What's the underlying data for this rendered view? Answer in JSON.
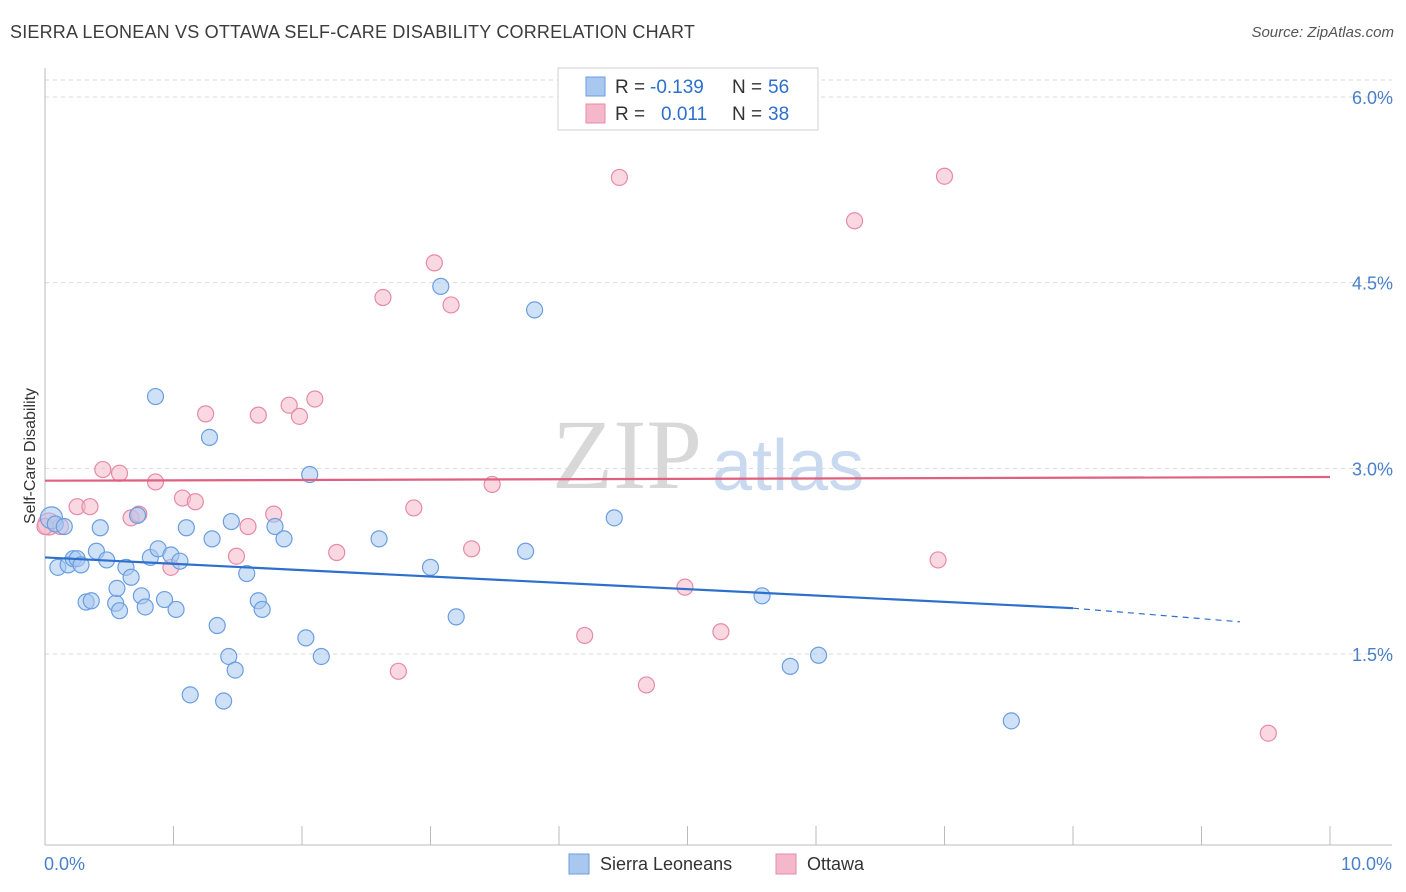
{
  "header": {
    "title": "SIERRA LEONEAN VS OTTAWA SELF-CARE DISABILITY CORRELATION CHART",
    "source": "Source: ZipAtlas.com"
  },
  "watermark": {
    "zip": "ZIP",
    "atlas": "atlas"
  },
  "legend": {
    "rows": [
      {
        "r_label": "R =",
        "r_value": "-0.139",
        "n_label": "N =",
        "n_value": "56",
        "color": "#a8c8f0"
      },
      {
        "r_label": "R =",
        "r_value": "0.011",
        "n_label": "N =",
        "n_value": "38",
        "color": "#f5b8cb"
      }
    ]
  },
  "bottom_legend": {
    "items": [
      {
        "label": "Sierra Leoneans",
        "color": "#a8c8f0"
      },
      {
        "label": "Ottawa",
        "color": "#f5b8cb"
      }
    ]
  },
  "colors": {
    "blue_fill": "#a8c8f0",
    "blue_stroke": "#6a9ee0",
    "blue_line": "#2d6fcc",
    "pink_fill": "#f5b8cb",
    "pink_stroke": "#e68aa8",
    "pink_line": "#e0607f",
    "grid": "#d9d9d9",
    "tick_text": "#4a80c9"
  },
  "chart_data": {
    "type": "scatter",
    "title": "SIERRA LEONEAN VS OTTAWA SELF-CARE DISABILITY CORRELATION CHART",
    "ylabel": "Self-Care Disability",
    "xlabel": "",
    "xlim": [
      0,
      10
    ],
    "ylim": [
      0,
      6.2
    ],
    "x_tick_labels": [
      "0.0%",
      "10.0%"
    ],
    "y_ticks": [
      1.5,
      3.0,
      4.5,
      6.0
    ],
    "y_tick_labels": [
      "1.5%",
      "3.0%",
      "4.5%",
      "6.0%"
    ],
    "grid": true,
    "legend_placement": "top-center",
    "series": [
      {
        "name": "Sierra Leoneans",
        "color": "#a8c8f0",
        "trend": {
          "x": [
            0,
            8.0
          ],
          "y": [
            2.28,
            1.87
          ],
          "dashed_to": [
            9.3,
            1.76
          ]
        },
        "points": [
          [
            0.05,
            2.6
          ],
          [
            0.08,
            2.55
          ],
          [
            0.1,
            2.2
          ],
          [
            0.18,
            2.22
          ],
          [
            0.22,
            2.27
          ],
          [
            0.25,
            2.27
          ],
          [
            0.28,
            2.22
          ],
          [
            0.32,
            1.92
          ],
          [
            0.36,
            1.93
          ],
          [
            0.4,
            2.33
          ],
          [
            0.43,
            2.52
          ],
          [
            0.48,
            2.26
          ],
          [
            0.55,
            1.91
          ],
          [
            0.56,
            2.03
          ],
          [
            0.58,
            1.85
          ],
          [
            0.63,
            2.2
          ],
          [
            0.67,
            2.12
          ],
          [
            0.72,
            2.62
          ],
          [
            0.75,
            1.97
          ],
          [
            0.78,
            1.88
          ],
          [
            0.82,
            2.28
          ],
          [
            0.86,
            3.58
          ],
          [
            0.88,
            2.35
          ],
          [
            0.93,
            1.94
          ],
          [
            0.98,
            2.3
          ],
          [
            1.02,
            1.86
          ],
          [
            1.05,
            2.25
          ],
          [
            1.1,
            2.52
          ],
          [
            1.13,
            1.17
          ],
          [
            1.28,
            3.25
          ],
          [
            1.3,
            2.43
          ],
          [
            1.34,
            1.73
          ],
          [
            1.39,
            1.12
          ],
          [
            1.43,
            1.48
          ],
          [
            1.45,
            2.57
          ],
          [
            1.48,
            1.37
          ],
          [
            1.57,
            2.15
          ],
          [
            1.66,
            1.93
          ],
          [
            1.69,
            1.86
          ],
          [
            1.79,
            2.53
          ],
          [
            1.86,
            2.43
          ],
          [
            2.03,
            1.63
          ],
          [
            2.06,
            2.95
          ],
          [
            2.15,
            1.48
          ],
          [
            2.6,
            2.43
          ],
          [
            3.0,
            2.2
          ],
          [
            3.08,
            4.47
          ],
          [
            3.2,
            1.8
          ],
          [
            3.81,
            4.28
          ],
          [
            3.74,
            2.33
          ],
          [
            4.43,
            2.6
          ],
          [
            5.58,
            1.97
          ],
          [
            5.8,
            1.4
          ],
          [
            6.02,
            1.49
          ],
          [
            7.52,
            0.96
          ],
          [
            0.15,
            2.53
          ]
        ]
      },
      {
        "name": "Ottawa",
        "color": "#f5b8cb",
        "trend": {
          "x": [
            0,
            10
          ],
          "y": [
            2.9,
            2.93
          ]
        },
        "points": [
          [
            0.03,
            2.55
          ],
          [
            0.12,
            2.53
          ],
          [
            0.25,
            2.69
          ],
          [
            0.35,
            2.69
          ],
          [
            0.45,
            2.99
          ],
          [
            0.58,
            2.96
          ],
          [
            0.67,
            2.6
          ],
          [
            0.73,
            2.63
          ],
          [
            0.86,
            2.89
          ],
          [
            0.98,
            2.2
          ],
          [
            1.07,
            2.76
          ],
          [
            1.17,
            2.73
          ],
          [
            1.25,
            3.44
          ],
          [
            1.49,
            2.29
          ],
          [
            1.58,
            2.53
          ],
          [
            1.66,
            3.43
          ],
          [
            1.78,
            2.63
          ],
          [
            1.9,
            3.51
          ],
          [
            1.98,
            3.42
          ],
          [
            2.1,
            3.56
          ],
          [
            2.27,
            2.32
          ],
          [
            2.63,
            4.38
          ],
          [
            2.75,
            1.36
          ],
          [
            2.87,
            2.68
          ],
          [
            3.03,
            4.66
          ],
          [
            3.16,
            4.32
          ],
          [
            3.32,
            2.35
          ],
          [
            3.48,
            2.87
          ],
          [
            4.2,
            1.65
          ],
          [
            4.47,
            5.35
          ],
          [
            4.68,
            1.25
          ],
          [
            4.98,
            2.04
          ],
          [
            5.26,
            1.68
          ],
          [
            6.3,
            5.0
          ],
          [
            6.95,
            2.26
          ],
          [
            7.0,
            5.36
          ],
          [
            9.52,
            0.86
          ],
          [
            0.0,
            2.53
          ]
        ]
      }
    ]
  }
}
